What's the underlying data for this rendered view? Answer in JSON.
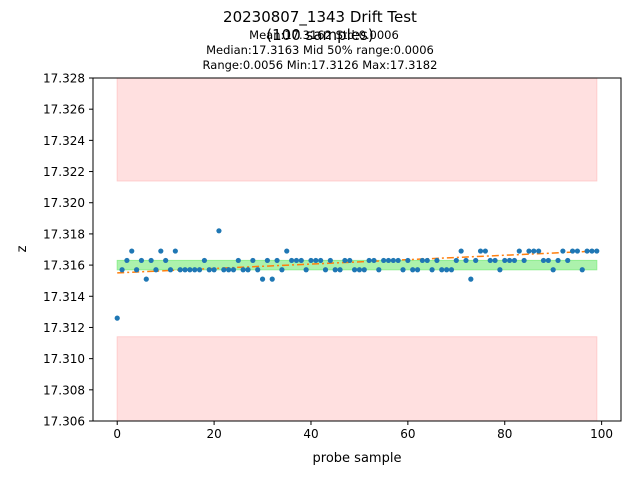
{
  "chart_data": {
    "type": "scatter",
    "title_line1": "20230807_1343 Drift Test",
    "title_line2": "(100 samples)",
    "stats": [
      "Mean:17.3162  Std:0.0006",
      "Median:17.3163  Mid 50% range:0.0006",
      "Range:0.0056  Min:17.3126  Max:17.3182"
    ],
    "xlabel": "probe sample",
    "ylabel": "z",
    "xlim": [
      -5,
      104
    ],
    "ylim": [
      17.306,
      17.328
    ],
    "xticks": [
      0,
      20,
      40,
      60,
      80,
      100
    ],
    "yticks": [
      17.306,
      17.308,
      17.31,
      17.312,
      17.314,
      17.316,
      17.318,
      17.32,
      17.322,
      17.324,
      17.326,
      17.328
    ],
    "grid": false,
    "colors": {
      "points": "#1f77b4",
      "trend": "#ff7f0e",
      "mid_band": "#90ee90",
      "limit_band": "#ffcccc"
    },
    "bands": [
      {
        "name": "upper-limit-band",
        "x": [
          0,
          99
        ],
        "y": [
          17.3214,
          17.328
        ],
        "color": "#ffcccc"
      },
      {
        "name": "lower-limit-band",
        "x": [
          0,
          99
        ],
        "y": [
          17.306,
          17.3114
        ],
        "color": "#ffcccc"
      },
      {
        "name": "mid-50-band",
        "x": [
          0,
          99
        ],
        "y": [
          17.3157,
          17.3163
        ],
        "color": "#90ee90"
      }
    ],
    "trend": {
      "x": [
        0,
        99
      ],
      "y": [
        17.3155,
        17.3169
      ]
    },
    "series": [
      {
        "x": [
          0,
          1,
          2,
          3,
          4,
          5,
          6,
          7,
          8,
          9,
          10,
          11,
          12,
          13,
          14,
          15,
          16,
          17,
          18,
          19,
          20,
          21,
          22,
          23,
          24,
          25,
          26,
          27,
          28,
          29,
          30,
          31,
          32,
          33,
          34,
          35,
          36,
          37,
          38,
          39,
          40,
          41,
          42,
          43,
          44,
          45,
          46,
          47,
          48,
          49,
          50,
          51,
          52,
          53,
          54,
          55,
          56,
          57,
          58,
          59,
          60,
          61,
          62,
          63,
          64,
          65,
          66,
          67,
          68,
          69,
          70,
          71,
          72,
          73,
          74,
          75,
          76,
          77,
          78,
          79,
          80,
          81,
          82,
          83,
          84,
          85,
          86,
          87,
          88,
          89,
          90,
          91,
          92,
          93,
          94,
          95,
          96,
          97,
          98,
          99
        ],
        "y": [
          17.3126,
          17.3157,
          17.3163,
          17.3169,
          17.3157,
          17.3163,
          17.3151,
          17.3163,
          17.3157,
          17.3169,
          17.3163,
          17.3157,
          17.3169,
          17.3157,
          17.3157,
          17.3157,
          17.3157,
          17.3157,
          17.3163,
          17.3157,
          17.3157,
          17.3182,
          17.3157,
          17.3157,
          17.3157,
          17.3163,
          17.3157,
          17.3157,
          17.3163,
          17.3157,
          17.3151,
          17.3163,
          17.3151,
          17.3163,
          17.3157,
          17.3169,
          17.3163,
          17.3163,
          17.3163,
          17.3157,
          17.3163,
          17.3163,
          17.3163,
          17.3157,
          17.3163,
          17.3157,
          17.3157,
          17.3163,
          17.3163,
          17.3157,
          17.3157,
          17.3157,
          17.3163,
          17.3163,
          17.3157,
          17.3163,
          17.3163,
          17.3163,
          17.3163,
          17.3157,
          17.3163,
          17.3157,
          17.3157,
          17.3163,
          17.3163,
          17.3157,
          17.3163,
          17.3157,
          17.3157,
          17.3157,
          17.3163,
          17.3169,
          17.3163,
          17.3151,
          17.3163,
          17.3169,
          17.3169,
          17.3163,
          17.3163,
          17.3157,
          17.3163,
          17.3163,
          17.3163,
          17.3169,
          17.3163,
          17.3169,
          17.3169,
          17.3169,
          17.3163,
          17.3163,
          17.3157,
          17.3163,
          17.3169,
          17.3163,
          17.3169,
          17.3169,
          17.3157,
          17.3169,
          17.3169,
          17.3169
        ]
      }
    ]
  }
}
